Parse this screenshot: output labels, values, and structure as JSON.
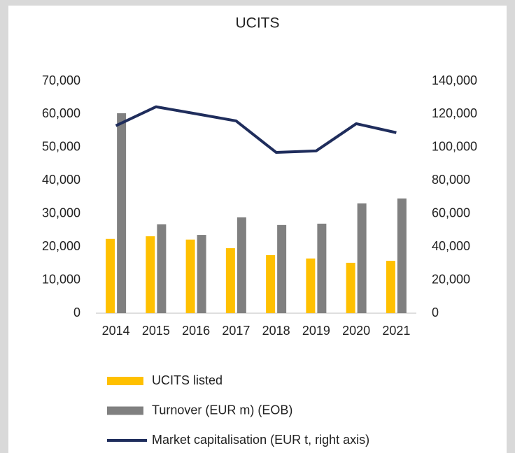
{
  "chart_data": {
    "type": "bar",
    "title": "UCITS",
    "categories": [
      "2014",
      "2015",
      "2016",
      "2017",
      "2018",
      "2019",
      "2020",
      "2021"
    ],
    "series": [
      {
        "name": "UCITS listed",
        "type": "bar",
        "color": "#ffc000",
        "values": [
          22400,
          23200,
          22200,
          19600,
          17500,
          16500,
          15200,
          15800
        ]
      },
      {
        "name": "Turnover (EUR m) (EOB)",
        "type": "bar",
        "color": "#808080",
        "values": [
          60300,
          26800,
          23600,
          28900,
          26600,
          27000,
          33100,
          34600
        ]
      },
      {
        "name": "Market capitalisation (EUR t, right axis)",
        "type": "line",
        "axis": "y2",
        "color": "#1f2d5c",
        "values": [
          113100,
          124500,
          120300,
          116000,
          97000,
          97900,
          114300,
          108900
        ]
      }
    ],
    "ylim": [
      0,
      70000
    ],
    "yticks": [
      0,
      {
        "value": 10000,
        "label": "10,000"
      },
      {
        "value": 20000,
        "label": "20,000"
      },
      {
        "value": 30000,
        "label": "30,000"
      },
      {
        "value": 40000,
        "label": "40,000"
      },
      {
        "value": 50000,
        "label": "50,000"
      },
      {
        "value": 60000,
        "label": "60,000"
      },
      {
        "value": 70000,
        "label": "70,000"
      }
    ],
    "y2lim": [
      0,
      140000
    ],
    "y2ticks": [
      0,
      {
        "value": 20000,
        "label": "20,000"
      },
      {
        "value": 40000,
        "label": "40,000"
      },
      {
        "value": 60000,
        "label": "60,000"
      },
      {
        "value": 80000,
        "label": "80,000"
      },
      {
        "value": 100000,
        "label": "100,000"
      },
      {
        "value": 120000,
        "label": "120,000"
      },
      {
        "value": 140000,
        "label": "140,000"
      }
    ],
    "grid": false,
    "legend": "bottom"
  }
}
